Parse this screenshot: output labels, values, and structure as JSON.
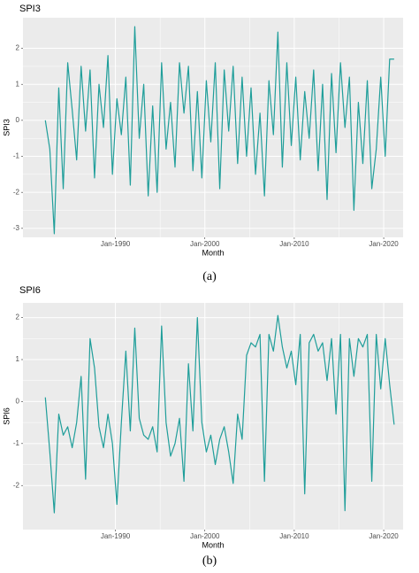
{
  "chart_data": [
    {
      "type": "line",
      "title": "SPI3",
      "y_label": "SPI3",
      "x_label": "Month",
      "caption": "(a)",
      "color": "#1f9e9a",
      "grid": true,
      "xlim": [
        "1979-09",
        "2022-03"
      ],
      "ylim": [
        -3.25,
        2.85
      ],
      "xticks": [
        {
          "value": "1990-01",
          "label": "Jan-1990"
        },
        {
          "value": "2000-01",
          "label": "Jan-2000"
        },
        {
          "value": "2010-01",
          "label": "Jan-2010"
        },
        {
          "value": "2020-01",
          "label": "Jan-2020"
        }
      ],
      "yticks": [
        -3,
        -2,
        -1,
        0,
        1,
        2
      ],
      "x": [
        "1982-03",
        "1982-09",
        "1983-03",
        "1983-09",
        "1984-03",
        "1984-09",
        "1985-03",
        "1985-09",
        "1986-03",
        "1986-09",
        "1987-03",
        "1987-09",
        "1988-03",
        "1988-09",
        "1989-03",
        "1989-09",
        "1990-03",
        "1990-09",
        "1991-03",
        "1991-09",
        "1992-03",
        "1992-09",
        "1993-03",
        "1993-09",
        "1994-03",
        "1994-09",
        "1995-03",
        "1995-09",
        "1996-03",
        "1996-09",
        "1997-03",
        "1997-09",
        "1998-03",
        "1998-09",
        "1999-03",
        "1999-09",
        "2000-03",
        "2000-09",
        "2001-03",
        "2001-09",
        "2002-03",
        "2002-09",
        "2003-03",
        "2003-09",
        "2004-03",
        "2004-09",
        "2005-03",
        "2005-09",
        "2006-03",
        "2006-09",
        "2007-03",
        "2007-09",
        "2008-03",
        "2008-09",
        "2009-03",
        "2009-09",
        "2010-03",
        "2010-09",
        "2011-03",
        "2011-09",
        "2012-03",
        "2012-09",
        "2013-03",
        "2013-09",
        "2014-03",
        "2014-09",
        "2015-03",
        "2015-09",
        "2016-03",
        "2016-09",
        "2017-03",
        "2017-09",
        "2018-03",
        "2018-09",
        "2019-03",
        "2019-09",
        "2020-03",
        "2020-09",
        "2021-03"
      ],
      "values": [
        0.0,
        -0.8,
        -3.15,
        0.9,
        -1.9,
        1.6,
        0.3,
        -1.1,
        1.5,
        -0.3,
        1.4,
        -1.6,
        1.0,
        -0.2,
        1.8,
        -1.5,
        0.6,
        -0.4,
        1.2,
        -1.8,
        2.6,
        -0.5,
        1.0,
        -2.1,
        0.4,
        -2.0,
        1.6,
        -0.8,
        0.5,
        -1.3,
        1.6,
        0.2,
        1.5,
        -1.4,
        0.8,
        -1.6,
        1.1,
        -0.6,
        1.6,
        -1.9,
        1.4,
        -0.3,
        1.5,
        -1.2,
        1.2,
        -1.0,
        0.9,
        -1.5,
        0.2,
        -2.1,
        1.1,
        -0.4,
        2.45,
        -1.3,
        1.6,
        -0.7,
        1.2,
        -1.1,
        0.8,
        -0.5,
        1.4,
        -1.4,
        1.0,
        -2.2,
        1.3,
        -0.9,
        1.6,
        -0.2,
        1.2,
        -2.5,
        0.5,
        -1.2,
        1.1,
        -1.9,
        -0.8,
        1.2,
        -1.0,
        1.7,
        1.7
      ]
    },
    {
      "type": "line",
      "title": "SPI6",
      "y_label": "SPI6",
      "x_label": "Month",
      "caption": "(b)",
      "color": "#1f9e9a",
      "grid": true,
      "xlim": [
        "1979-09",
        "2022-03"
      ],
      "ylim": [
        -3.05,
        2.35
      ],
      "xticks": [
        {
          "value": "1990-01",
          "label": "Jan-1990"
        },
        {
          "value": "2000-01",
          "label": "Jan-2000"
        },
        {
          "value": "2010-01",
          "label": "Jan-2010"
        },
        {
          "value": "2020-01",
          "label": "Jan-2020"
        }
      ],
      "yticks": [
        -2,
        -1,
        0,
        1,
        2
      ],
      "x": [
        "1982-03",
        "1982-09",
        "1983-03",
        "1983-09",
        "1984-03",
        "1984-09",
        "1985-03",
        "1985-09",
        "1986-03",
        "1986-09",
        "1987-03",
        "1987-09",
        "1988-03",
        "1988-09",
        "1989-03",
        "1989-09",
        "1990-03",
        "1990-09",
        "1991-03",
        "1991-09",
        "1992-03",
        "1992-09",
        "1993-03",
        "1993-09",
        "1994-03",
        "1994-09",
        "1995-03",
        "1995-09",
        "1996-03",
        "1996-09",
        "1997-03",
        "1997-09",
        "1998-03",
        "1998-09",
        "1999-03",
        "1999-09",
        "2000-03",
        "2000-09",
        "2001-03",
        "2001-09",
        "2002-03",
        "2002-09",
        "2003-03",
        "2003-09",
        "2004-03",
        "2004-09",
        "2005-03",
        "2005-09",
        "2006-03",
        "2006-09",
        "2007-03",
        "2007-09",
        "2008-03",
        "2008-09",
        "2009-03",
        "2009-09",
        "2010-03",
        "2010-09",
        "2011-03",
        "2011-09",
        "2012-03",
        "2012-09",
        "2013-03",
        "2013-09",
        "2014-03",
        "2014-09",
        "2015-03",
        "2015-09",
        "2016-03",
        "2016-09",
        "2017-03",
        "2017-09",
        "2018-03",
        "2018-09",
        "2019-03",
        "2019-09",
        "2020-03",
        "2020-09",
        "2021-03"
      ],
      "values": [
        0.1,
        -1.2,
        -2.65,
        -0.3,
        -0.8,
        -0.6,
        -1.1,
        -0.5,
        0.6,
        -1.85,
        1.5,
        0.8,
        -0.6,
        -1.1,
        -0.3,
        -1.0,
        -2.45,
        -0.5,
        1.2,
        -0.7,
        1.75,
        -0.4,
        -0.8,
        -0.9,
        -0.6,
        -1.2,
        1.8,
        -0.5,
        -1.3,
        -1.0,
        -0.4,
        -1.9,
        0.9,
        -0.7,
        2.0,
        -0.5,
        -1.2,
        -0.8,
        -1.5,
        -0.9,
        -0.6,
        -1.2,
        -1.95,
        -0.3,
        -0.9,
        1.1,
        1.4,
        1.3,
        1.6,
        -1.9,
        1.6,
        1.2,
        2.05,
        1.3,
        0.8,
        1.2,
        0.4,
        1.6,
        -2.2,
        1.4,
        1.6,
        1.2,
        1.4,
        0.5,
        1.5,
        -0.3,
        1.6,
        -2.6,
        1.5,
        0.6,
        1.5,
        1.3,
        1.6,
        -1.9,
        1.6,
        0.3,
        1.5,
        0.4,
        -0.55
      ]
    }
  ]
}
